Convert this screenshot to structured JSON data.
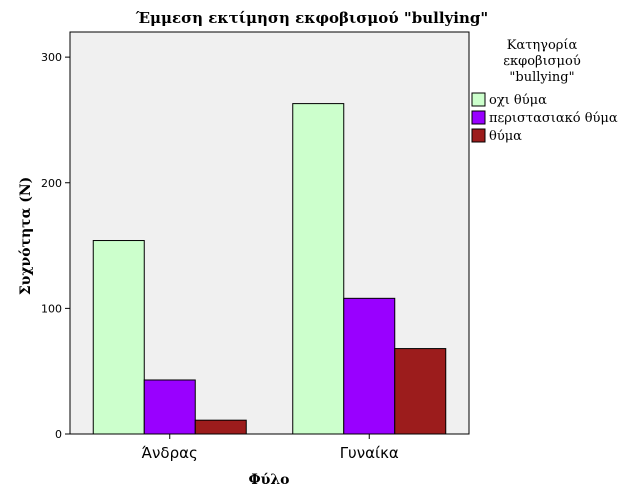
{
  "chart_data": {
    "type": "bar",
    "title": "Έμμεση εκτίμηση εκφοβισμού \"bullying\"",
    "xlabel": "Φύλο",
    "ylabel": "Συχνότητα (N)",
    "categories": [
      "Άνδρας",
      "Γυναίκα"
    ],
    "ylim": [
      0,
      320
    ],
    "yticks": [
      0,
      100,
      200,
      300
    ],
    "grid": false,
    "legend_position": "right",
    "legend_title": [
      "Κατηγορία",
      "εκφοβισμού",
      "\"bullying\""
    ],
    "series": [
      {
        "name": "οχι θύμα",
        "color": "#ccffcc",
        "values": [
          154,
          263
        ]
      },
      {
        "name": "περιστασιακό θύμα",
        "color": "#9900ff",
        "values": [
          43,
          108
        ]
      },
      {
        "name": "θύμα",
        "color": "#9c1c1c",
        "values": [
          11,
          68
        ]
      }
    ]
  }
}
